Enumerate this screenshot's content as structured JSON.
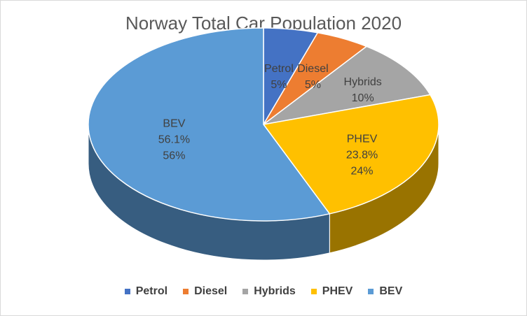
{
  "chart_data": {
    "type": "pie",
    "title": "Norway Total Car Population 2020",
    "categories": [
      "Petrol",
      "Diesel",
      "Hybrids",
      "PHEV",
      "BEV"
    ],
    "values": [
      5,
      5,
      10,
      23.8,
      56.1
    ],
    "labels": [
      [
        "Petrol",
        "5%"
      ],
      [
        "Diesel",
        "5%"
      ],
      [
        "Hybrids",
        "10%"
      ],
      [
        "PHEV",
        "23.8%",
        "24%"
      ],
      [
        "BEV",
        "56.1%",
        "56%"
      ]
    ],
    "colors": [
      "#4472c4",
      "#ed7d31",
      "#a5a5a5",
      "#ffc000",
      "#5b9bd5"
    ],
    "legend_position": "bottom",
    "style": "3d-pie"
  }
}
